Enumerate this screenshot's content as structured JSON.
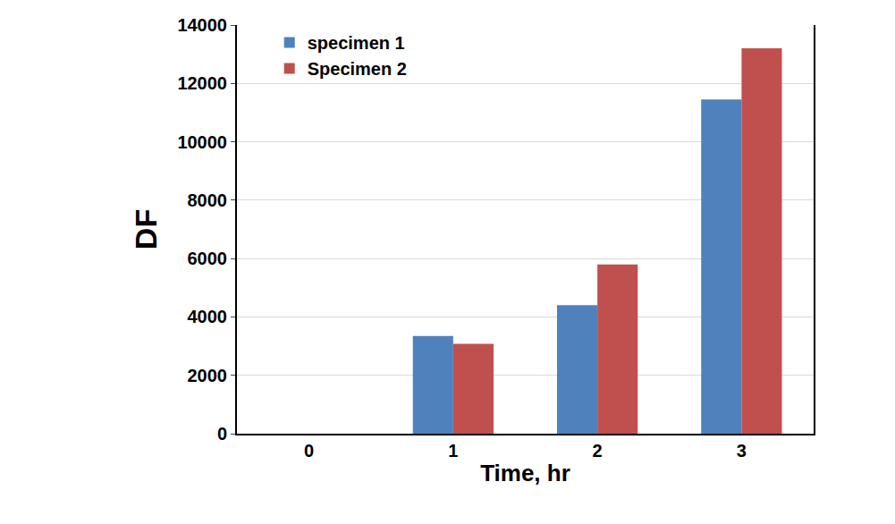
{
  "chart_data": {
    "type": "bar",
    "x_label": "Time, hr",
    "y_label": "DF",
    "categories": [
      "0",
      "1",
      "2",
      "3"
    ],
    "series": [
      {
        "name": "specimen 1",
        "color": "#4f81bd",
        "values": [
          0,
          3350,
          4400,
          11450
        ]
      },
      {
        "name": "Specimen 2",
        "color": "#c0504d",
        "values": [
          0,
          3080,
          5800,
          13200
        ]
      }
    ],
    "ylim": [
      0,
      14000
    ],
    "yticks": [
      0,
      2000,
      4000,
      6000,
      8000,
      10000,
      12000,
      14000
    ],
    "grid": true,
    "legend": "upper left"
  }
}
